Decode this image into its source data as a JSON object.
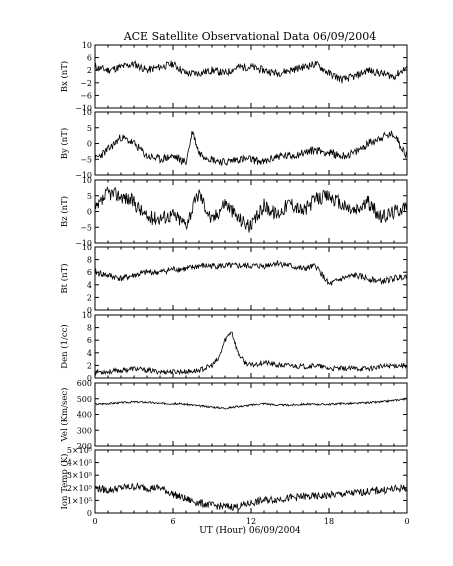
{
  "title": "ACE Satellite Observational Data   06/09/2004",
  "xlabel": "UT (Hour)   06/09/2004",
  "x_ticks": [
    "0",
    "6",
    "12",
    "18",
    "0"
  ],
  "chart_data": [
    {
      "type": "line",
      "ylabel": "Bx (nT)",
      "ylim": [
        -10,
        10
      ],
      "yticks": [
        10,
        6,
        2,
        -2,
        -6,
        -10
      ],
      "ytick_labels": [
        "10",
        "6",
        "2",
        "−2",
        "−6",
        "−10"
      ],
      "x": [
        0,
        1,
        2,
        3,
        4,
        5,
        6,
        7,
        8,
        9,
        10,
        11,
        12,
        13,
        14,
        15,
        16,
        17,
        18,
        19,
        20,
        21,
        22,
        23,
        24
      ],
      "values": [
        3,
        2,
        3,
        4,
        2,
        3,
        4,
        1,
        1,
        2,
        1,
        3,
        3,
        2,
        1,
        2,
        3,
        4,
        1,
        -1,
        0,
        2,
        1,
        0,
        3
      ],
      "noise": 1.2,
      "seed": 11
    },
    {
      "type": "line",
      "ylabel": "By (nT)",
      "ylim": [
        -10,
        10
      ],
      "yticks": [
        10,
        5,
        0,
        -5,
        -10
      ],
      "ytick_labels": [
        "10",
        "5",
        "0",
        "−5",
        "−10"
      ],
      "x": [
        0,
        1,
        2,
        3,
        4,
        5,
        6,
        7,
        7.5,
        8,
        9,
        10,
        11,
        12,
        13,
        14,
        15,
        16,
        17,
        18,
        19,
        20,
        21,
        22,
        23,
        24
      ],
      "values": [
        -5,
        -2,
        2,
        0,
        -4,
        -5,
        -4,
        -6,
        4,
        -3,
        -5,
        -6,
        -5,
        -5,
        -6,
        -4,
        -4,
        -3,
        -2,
        -3,
        -4,
        -3,
        0,
        2,
        3,
        -4
      ],
      "noise": 1.3,
      "seed": 23
    },
    {
      "type": "line",
      "ylabel": "Bz (nT)",
      "ylim": [
        -10,
        10
      ],
      "yticks": [
        10,
        5,
        0,
        -5,
        -10
      ],
      "ytick_labels": [
        "10",
        "5",
        "0",
        "−5",
        "−10"
      ],
      "x": [
        0,
        1,
        2,
        3,
        4,
        5,
        6,
        7,
        8,
        9,
        10,
        11,
        12,
        13,
        14,
        15,
        16,
        17,
        18,
        19,
        20,
        21,
        22,
        23,
        24
      ],
      "values": [
        0,
        6,
        5,
        3,
        -2,
        -2,
        -1,
        -4,
        6,
        -3,
        3,
        -2,
        -5,
        2,
        -1,
        3,
        0,
        4,
        5,
        2,
        0,
        3,
        -2,
        0,
        2
      ],
      "noise": 2.3,
      "seed": 37
    },
    {
      "type": "line",
      "ylabel": "Bt (nT)",
      "ylim": [
        0,
        10
      ],
      "yticks": [
        10,
        8,
        6,
        4,
        2,
        0
      ],
      "ytick_labels": [
        "10",
        "8",
        "6",
        "4",
        "2",
        "0"
      ],
      "x": [
        0,
        1,
        2,
        3,
        4,
        5,
        6,
        7,
        8,
        9,
        10,
        11,
        12,
        13,
        14,
        15,
        16,
        17,
        18,
        19,
        20,
        21,
        22,
        23,
        24
      ],
      "values": [
        6,
        5.5,
        5,
        5.5,
        6,
        6,
        6.5,
        6.5,
        7,
        7,
        7,
        7,
        7,
        7,
        7.5,
        7,
        6.5,
        7,
        4,
        5,
        5.5,
        5,
        4.5,
        5,
        5.5
      ],
      "noise": 0.5,
      "seed": 41
    },
    {
      "type": "line",
      "ylabel": "Den (1/cc)",
      "ylim": [
        0,
        10
      ],
      "yticks": [
        10,
        8,
        6,
        4,
        2,
        0
      ],
      "ytick_labels": [
        "10",
        "8",
        "6",
        "4",
        "2",
        "0"
      ],
      "x": [
        0,
        1,
        2,
        3,
        4,
        5,
        6,
        7,
        8,
        9,
        9.5,
        10,
        10.5,
        11,
        11.5,
        12,
        13,
        14,
        15,
        16,
        17,
        18,
        19,
        20,
        21,
        22,
        23,
        24
      ],
      "values": [
        1,
        1,
        1.2,
        1.5,
        1.2,
        1,
        1,
        1,
        1.2,
        2,
        3,
        6,
        7.5,
        4,
        2.5,
        2,
        2.5,
        2,
        2,
        1.8,
        2,
        1.5,
        1.5,
        1.5,
        1.5,
        1.8,
        2,
        2
      ],
      "noise": 0.4,
      "seed": 53
    },
    {
      "type": "line",
      "ylabel": "Vel (Km/sec)",
      "ylim": [
        200,
        600
      ],
      "yticks": [
        600,
        500,
        400,
        300,
        200
      ],
      "ytick_labels": [
        "600",
        "500",
        "400",
        "300",
        "200"
      ],
      "x": [
        0,
        1,
        2,
        3,
        4,
        5,
        6,
        7,
        8,
        9,
        10,
        11,
        12,
        13,
        14,
        15,
        16,
        17,
        18,
        19,
        20,
        21,
        22,
        23,
        24
      ],
      "values": [
        465,
        470,
        475,
        480,
        478,
        470,
        470,
        465,
        455,
        448,
        440,
        450,
        460,
        470,
        460,
        460,
        465,
        465,
        465,
        470,
        470,
        475,
        480,
        490,
        500
      ],
      "noise": 6,
      "seed": 67
    },
    {
      "type": "line",
      "ylabel": "Ion Temp (K)",
      "ylim": [
        0,
        500000
      ],
      "yticks": [
        500000,
        400000,
        300000,
        200000,
        100000,
        0
      ],
      "ytick_labels": [
        "5×10⁵",
        "4×10⁵",
        "3×10⁵",
        "2×10⁵",
        "1×10⁵",
        "0"
      ],
      "x": [
        0,
        1,
        2,
        3,
        4,
        5,
        6,
        7,
        8,
        9,
        10,
        11,
        12,
        13,
        14,
        15,
        16,
        17,
        18,
        19,
        20,
        21,
        22,
        23,
        24
      ],
      "values": [
        200000,
        180000,
        200000,
        210000,
        200000,
        200000,
        150000,
        110000,
        80000,
        60000,
        50000,
        50000,
        80000,
        100000,
        110000,
        120000,
        130000,
        130000,
        140000,
        150000,
        160000,
        170000,
        180000,
        190000,
        200000
      ],
      "noise": 30000,
      "seed": 79
    }
  ]
}
